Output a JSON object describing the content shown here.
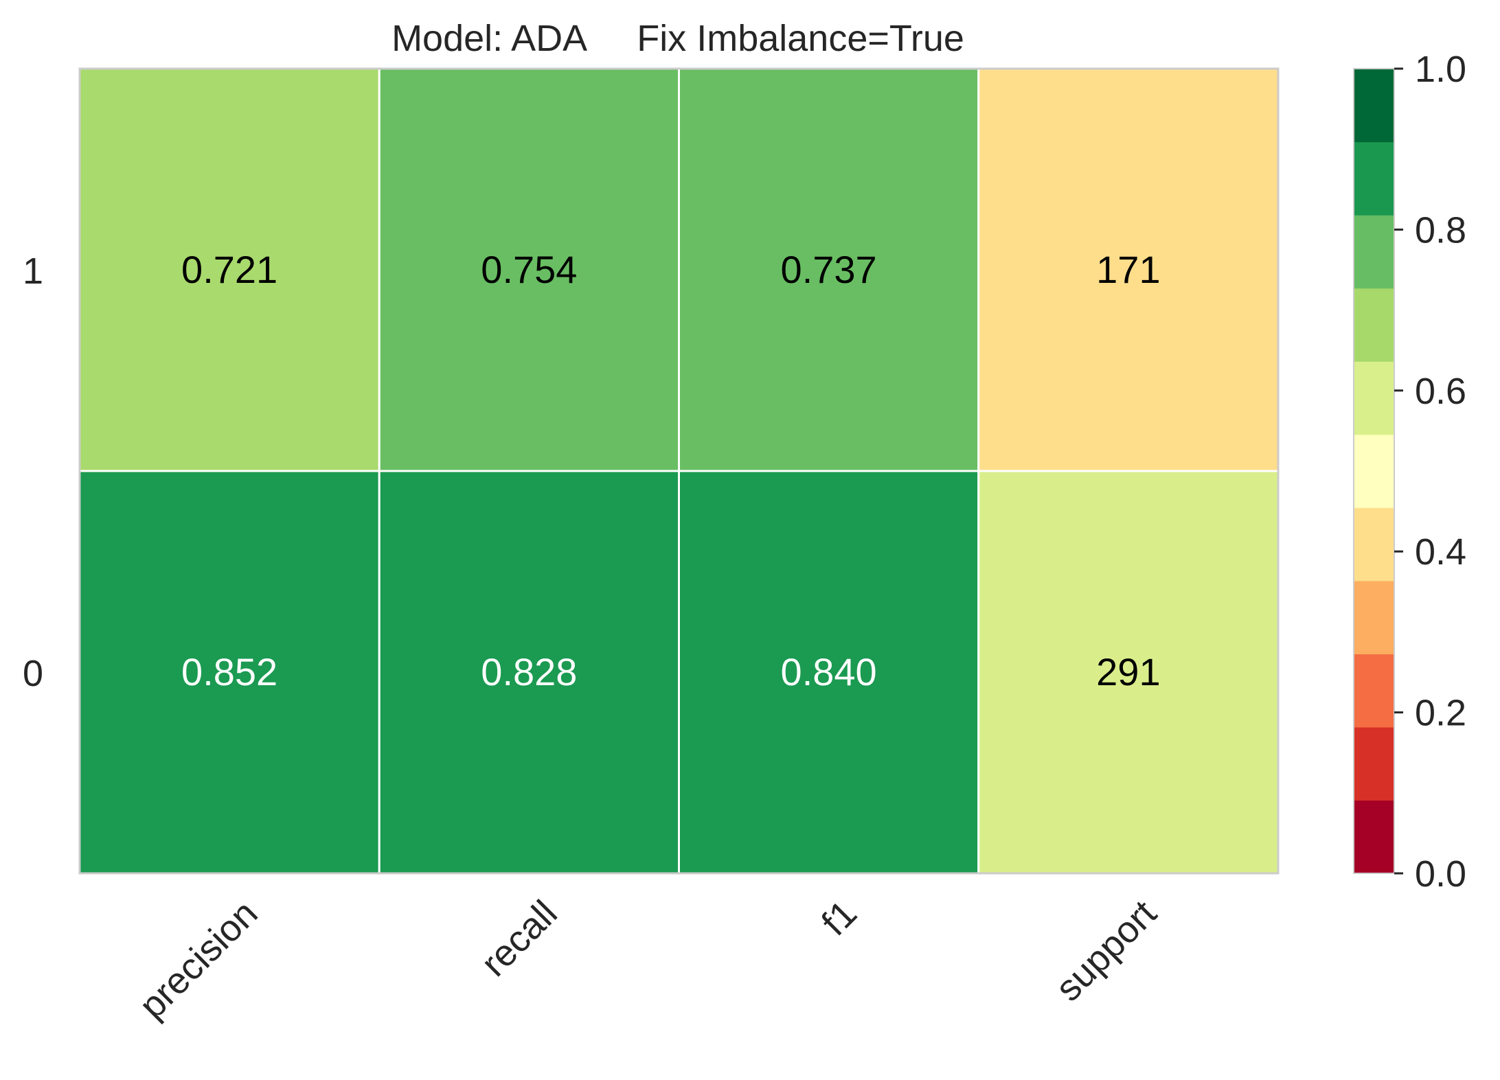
{
  "chart_data": {
    "type": "heatmap",
    "title": "Model: ADA     Fix Imbalance=True",
    "columns": [
      "precision",
      "recall",
      "f1",
      "support"
    ],
    "rows": [
      "1",
      "0"
    ],
    "cells": [
      {
        "row": "1",
        "column": "precision",
        "value": 0.721,
        "label": "0.721",
        "color": "#a9da6d",
        "text_color": "#000000"
      },
      {
        "row": "1",
        "column": "recall",
        "value": 0.754,
        "label": "0.754",
        "color": "#69be63",
        "text_color": "#000000"
      },
      {
        "row": "1",
        "column": "f1",
        "value": 0.737,
        "label": "0.737",
        "color": "#69be63",
        "text_color": "#000000"
      },
      {
        "row": "1",
        "column": "support",
        "value": 171,
        "label": "171",
        "color": "#fede8b",
        "text_color": "#000000"
      },
      {
        "row": "0",
        "column": "precision",
        "value": 0.852,
        "label": "0.852",
        "color": "#1b9a51",
        "text_color": "#ffffff"
      },
      {
        "row": "0",
        "column": "recall",
        "value": 0.828,
        "label": "0.828",
        "color": "#1b9a51",
        "text_color": "#ffffff"
      },
      {
        "row": "0",
        "column": "f1",
        "value": 0.84,
        "label": "0.840",
        "color": "#1b9a51",
        "text_color": "#ffffff"
      },
      {
        "row": "0",
        "column": "support",
        "value": 291,
        "label": "291",
        "color": "#d9ee8b",
        "text_color": "#000000"
      }
    ],
    "colorbar": {
      "range": [
        0.0,
        1.0
      ],
      "ticks": [
        "0.0",
        "0.2",
        "0.4",
        "0.6",
        "0.8",
        "1.0"
      ],
      "tick_values": [
        0.0,
        0.2,
        0.4,
        0.6,
        0.8,
        1.0
      ],
      "colors": [
        "#a50026",
        "#d73027",
        "#f46d43",
        "#fdae61",
        "#fede8b",
        "#ffffbf",
        "#d9ef8b",
        "#a6d96a",
        "#66bd63",
        "#1a9850",
        "#006837"
      ]
    },
    "grid": true,
    "xlabel": "",
    "ylabel": ""
  }
}
